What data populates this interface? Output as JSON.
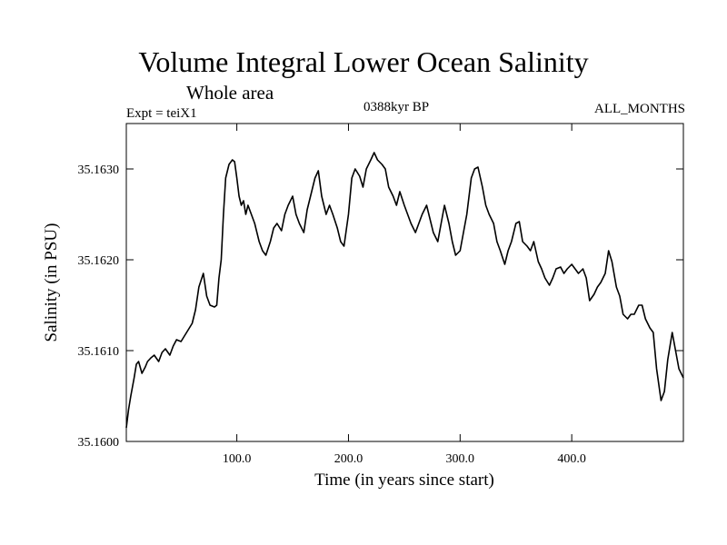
{
  "header": {
    "title": "Volume Integral Lower Ocean Salinity",
    "subtitle": "Whole area",
    "left_label": "Expt = teiX1",
    "center_label": "0388kyr BP",
    "right_label": "ALL_MONTHS"
  },
  "chart_data": {
    "type": "line",
    "xlabel": "Time (in years since start)",
    "ylabel": "Salinity (in PSU)",
    "xlim": [
      1,
      500
    ],
    "ylim": [
      35.16,
      35.1635
    ],
    "x_ticks": [
      100,
      200,
      300,
      400
    ],
    "x_tick_labels": [
      "100.0",
      "200.0",
      "300.0",
      "400.0"
    ],
    "y_ticks": [
      35.16,
      35.161,
      35.162,
      35.163
    ],
    "y_tick_labels": [
      "35.1600",
      "35.1610",
      "35.1620",
      "35.1630"
    ],
    "grid": false,
    "series": [
      {
        "color": "#000000",
        "x": [
          1,
          3,
          5,
          8,
          10,
          12,
          15,
          18,
          20,
          23,
          26,
          30,
          33,
          36,
          40,
          43,
          46,
          50,
          53,
          56,
          60,
          63,
          66,
          70,
          73,
          76,
          80,
          82,
          84,
          86,
          88,
          90,
          93,
          96,
          98,
          100,
          102,
          104,
          106,
          108,
          110,
          113,
          116,
          120,
          123,
          126,
          130,
          133,
          136,
          140,
          143,
          146,
          150,
          153,
          156,
          160,
          163,
          166,
          170,
          173,
          176,
          180,
          183,
          186,
          190,
          193,
          196,
          200,
          203,
          206,
          210,
          213,
          216,
          220,
          223,
          226,
          230,
          233,
          236,
          240,
          243,
          246,
          250,
          253,
          256,
          260,
          263,
          266,
          270,
          273,
          276,
          280,
          283,
          286,
          290,
          293,
          296,
          300,
          303,
          306,
          310,
          313,
          316,
          320,
          323,
          326,
          330,
          333,
          336,
          340,
          343,
          346,
          350,
          353,
          356,
          360,
          363,
          366,
          370,
          373,
          376,
          380,
          383,
          386,
          390,
          393,
          396,
          400,
          403,
          406,
          410,
          413,
          416,
          420,
          423,
          426,
          430,
          433,
          436,
          440,
          443,
          446,
          450,
          453,
          456,
          460,
          463,
          466,
          470,
          473,
          476,
          480,
          483,
          486,
          490,
          493,
          496,
          500
        ],
        "y": [
          35.16015,
          35.16035,
          35.1605,
          35.1607,
          35.16085,
          35.16088,
          35.16075,
          35.16082,
          35.16088,
          35.16092,
          35.16095,
          35.16088,
          35.16098,
          35.16102,
          35.16095,
          35.16105,
          35.16112,
          35.1611,
          35.16116,
          35.16122,
          35.1613,
          35.16145,
          35.1617,
          35.16185,
          35.1616,
          35.1615,
          35.16148,
          35.1615,
          35.1618,
          35.162,
          35.1625,
          35.1629,
          35.16305,
          35.1631,
          35.16308,
          35.1629,
          35.1627,
          35.1626,
          35.16265,
          35.1625,
          35.1626,
          35.1625,
          35.1624,
          35.1622,
          35.1621,
          35.16205,
          35.1622,
          35.16235,
          35.1624,
          35.16232,
          35.1625,
          35.1626,
          35.1627,
          35.1625,
          35.1624,
          35.1623,
          35.16255,
          35.1627,
          35.1629,
          35.16298,
          35.1627,
          35.1625,
          35.1626,
          35.1625,
          35.16235,
          35.1622,
          35.16215,
          35.1625,
          35.1629,
          35.163,
          35.16292,
          35.1628,
          35.163,
          35.1631,
          35.16318,
          35.1631,
          35.16305,
          35.163,
          35.1628,
          35.1627,
          35.1626,
          35.16275,
          35.1626,
          35.1625,
          35.1624,
          35.1623,
          35.1624,
          35.1625,
          35.1626,
          35.16245,
          35.1623,
          35.1622,
          35.1624,
          35.1626,
          35.1624,
          35.1622,
          35.16205,
          35.1621,
          35.1623,
          35.1625,
          35.1629,
          35.163,
          35.16302,
          35.1628,
          35.1626,
          35.1625,
          35.1624,
          35.1622,
          35.1621,
          35.16195,
          35.1621,
          35.1622,
          35.1624,
          35.16242,
          35.1622,
          35.16215,
          35.1621,
          35.1622,
          35.16198,
          35.1619,
          35.1618,
          35.16172,
          35.1618,
          35.1619,
          35.16192,
          35.16185,
          35.1619,
          35.16195,
          35.1619,
          35.16185,
          35.1619,
          35.1618,
          35.16155,
          35.16162,
          35.1617,
          35.16175,
          35.16185,
          35.1621,
          35.16198,
          35.1617,
          35.1616,
          35.1614,
          35.16135,
          35.1614,
          35.1614,
          35.1615,
          35.1615,
          35.16135,
          35.16125,
          35.1612,
          35.1608,
          35.16045,
          35.16055,
          35.1609,
          35.1612,
          35.161,
          35.1608,
          35.1607
        ]
      }
    ]
  }
}
